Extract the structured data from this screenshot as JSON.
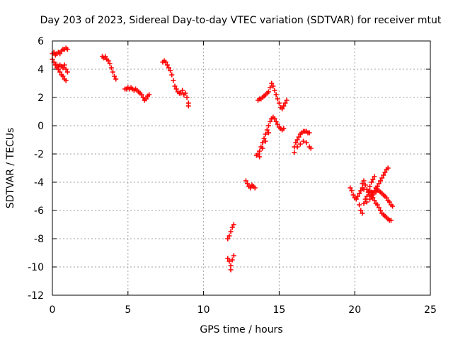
{
  "chart_data": {
    "type": "scatter",
    "title": "Day 203 of 2023, Sidereal Day-to-day VTEC variation (SDTVAR) for receiver mtut",
    "xlabel": "GPS time / hours",
    "ylabel": "SDTVAR / TECUs",
    "xlim": [
      0,
      25
    ],
    "ylim": [
      -12,
      6
    ],
    "xticks": [
      0,
      5,
      10,
      15,
      20,
      25
    ],
    "yticks": [
      -12,
      -10,
      -8,
      -6,
      -4,
      -2,
      0,
      2,
      4,
      6
    ],
    "xtick_labels": [
      "0",
      "5",
      "10",
      "15",
      "20",
      "25"
    ],
    "ytick_labels": [
      "-12",
      "-10",
      "-8",
      "-6",
      "-4",
      "-2",
      "0",
      "2",
      "4",
      "6"
    ],
    "grid": true,
    "marker": "+",
    "marker_color": "#ff0000",
    "series": [
      {
        "name": "SDTVAR",
        "points": [
          [
            0.0,
            5.1
          ],
          [
            0.1,
            5.2
          ],
          [
            0.2,
            5.0
          ],
          [
            0.3,
            5.1
          ],
          [
            0.4,
            5.2
          ],
          [
            0.5,
            5.1
          ],
          [
            0.6,
            5.3
          ],
          [
            0.7,
            5.4
          ],
          [
            0.8,
            5.4
          ],
          [
            0.9,
            5.5
          ],
          [
            1.0,
            5.4
          ],
          [
            0.0,
            4.7
          ],
          [
            0.1,
            4.5
          ],
          [
            0.2,
            4.3
          ],
          [
            0.3,
            4.1
          ],
          [
            0.4,
            4.0
          ],
          [
            0.5,
            3.8
          ],
          [
            0.6,
            3.6
          ],
          [
            0.7,
            3.5
          ],
          [
            0.8,
            3.3
          ],
          [
            0.9,
            3.2
          ],
          [
            0.3,
            4.3
          ],
          [
            0.4,
            4.2
          ],
          [
            0.5,
            4.3
          ],
          [
            0.6,
            4.2
          ],
          [
            0.7,
            4.1
          ],
          [
            0.8,
            4.3
          ],
          [
            0.9,
            4.0
          ],
          [
            1.0,
            3.8
          ],
          [
            3.3,
            4.9
          ],
          [
            3.4,
            4.8
          ],
          [
            3.5,
            4.9
          ],
          [
            3.6,
            4.7
          ],
          [
            3.7,
            4.6
          ],
          [
            3.8,
            4.4
          ],
          [
            3.9,
            4.1
          ],
          [
            4.0,
            3.8
          ],
          [
            4.1,
            3.5
          ],
          [
            4.2,
            3.3
          ],
          [
            4.8,
            2.6
          ],
          [
            4.9,
            2.6
          ],
          [
            5.0,
            2.7
          ],
          [
            5.1,
            2.6
          ],
          [
            5.2,
            2.7
          ],
          [
            5.3,
            2.6
          ],
          [
            5.4,
            2.5
          ],
          [
            5.5,
            2.6
          ],
          [
            5.6,
            2.5
          ],
          [
            5.7,
            2.4
          ],
          [
            5.8,
            2.3
          ],
          [
            5.9,
            2.2
          ],
          [
            6.0,
            2.0
          ],
          [
            6.1,
            1.8
          ],
          [
            6.2,
            1.9
          ],
          [
            6.3,
            2.1
          ],
          [
            6.4,
            2.2
          ],
          [
            7.3,
            4.5
          ],
          [
            7.4,
            4.6
          ],
          [
            7.5,
            4.5
          ],
          [
            7.6,
            4.3
          ],
          [
            7.7,
            4.1
          ],
          [
            7.8,
            3.9
          ],
          [
            7.9,
            3.6
          ],
          [
            8.0,
            3.2
          ],
          [
            8.1,
            2.8
          ],
          [
            8.2,
            2.6
          ],
          [
            8.3,
            2.4
          ],
          [
            8.4,
            2.3
          ],
          [
            8.5,
            2.3
          ],
          [
            8.6,
            2.5
          ],
          [
            8.7,
            2.2
          ],
          [
            8.8,
            2.3
          ],
          [
            8.9,
            2.0
          ],
          [
            9.0,
            1.6
          ],
          [
            9.0,
            1.4
          ],
          [
            11.6,
            -8.0
          ],
          [
            11.7,
            -7.8
          ],
          [
            11.8,
            -7.5
          ],
          [
            11.9,
            -7.2
          ],
          [
            12.0,
            -7.0
          ],
          [
            11.6,
            -9.4
          ],
          [
            11.7,
            -9.6
          ],
          [
            11.8,
            -9.9
          ],
          [
            11.8,
            -10.2
          ],
          [
            11.9,
            -9.5
          ],
          [
            12.0,
            -9.2
          ],
          [
            12.8,
            -3.9
          ],
          [
            12.9,
            -4.1
          ],
          [
            13.0,
            -4.3
          ],
          [
            13.1,
            -4.4
          ],
          [
            13.2,
            -4.2
          ],
          [
            13.3,
            -4.3
          ],
          [
            13.4,
            -4.4
          ],
          [
            13.5,
            -2.1
          ],
          [
            13.6,
            -2.0
          ],
          [
            13.7,
            -1.8
          ],
          [
            13.8,
            -1.5
          ],
          [
            13.9,
            -1.2
          ],
          [
            14.0,
            -0.9
          ],
          [
            14.1,
            -0.6
          ],
          [
            14.2,
            -0.3
          ],
          [
            14.3,
            0.0
          ],
          [
            14.4,
            0.3
          ],
          [
            14.5,
            0.5
          ],
          [
            14.6,
            0.6
          ],
          [
            14.7,
            0.5
          ],
          [
            14.8,
            0.3
          ],
          [
            14.9,
            0.1
          ],
          [
            15.0,
            -0.1
          ],
          [
            15.1,
            -0.2
          ],
          [
            15.2,
            -0.3
          ],
          [
            15.3,
            -0.2
          ],
          [
            13.6,
            1.8
          ],
          [
            13.7,
            1.9
          ],
          [
            13.8,
            1.9
          ],
          [
            13.9,
            2.0
          ],
          [
            14.0,
            2.1
          ],
          [
            14.1,
            2.2
          ],
          [
            14.2,
            2.3
          ],
          [
            14.3,
            2.4
          ],
          [
            14.4,
            2.7
          ],
          [
            14.5,
            3.0
          ],
          [
            14.6,
            2.8
          ],
          [
            14.7,
            2.5
          ],
          [
            14.8,
            2.2
          ],
          [
            14.9,
            1.9
          ],
          [
            15.0,
            1.6
          ],
          [
            15.1,
            1.3
          ],
          [
            15.2,
            1.2
          ],
          [
            15.3,
            1.4
          ],
          [
            15.4,
            1.6
          ],
          [
            15.5,
            1.8
          ],
          [
            13.7,
            -2.2
          ],
          [
            13.9,
            -1.6
          ],
          [
            14.1,
            -1.1
          ],
          [
            14.3,
            -0.5
          ],
          [
            16.0,
            -1.9
          ],
          [
            16.0,
            -1.5
          ],
          [
            16.1,
            -1.2
          ],
          [
            16.2,
            -1.0
          ],
          [
            16.3,
            -0.8
          ],
          [
            16.4,
            -0.6
          ],
          [
            16.5,
            -0.5
          ],
          [
            16.6,
            -0.4
          ],
          [
            16.7,
            -0.4
          ],
          [
            16.8,
            -0.4
          ],
          [
            16.9,
            -0.5
          ],
          [
            17.0,
            -0.5
          ],
          [
            16.2,
            -1.5
          ],
          [
            16.4,
            -1.3
          ],
          [
            16.6,
            -1.1
          ],
          [
            16.8,
            -1.2
          ],
          [
            17.0,
            -1.5
          ],
          [
            17.1,
            -1.6
          ],
          [
            19.7,
            -4.4
          ],
          [
            19.8,
            -4.6
          ],
          [
            19.9,
            -4.9
          ],
          [
            20.0,
            -5.1
          ],
          [
            20.1,
            -5.2
          ],
          [
            20.2,
            -5.0
          ],
          [
            20.3,
            -4.8
          ],
          [
            20.4,
            -4.6
          ],
          [
            20.5,
            -4.4
          ],
          [
            20.6,
            -4.5
          ],
          [
            20.3,
            -5.6
          ],
          [
            20.4,
            -6.0
          ],
          [
            20.5,
            -6.2
          ],
          [
            20.5,
            -4.1
          ],
          [
            20.6,
            -3.9
          ],
          [
            20.7,
            -4.2
          ],
          [
            20.8,
            -4.5
          ],
          [
            20.9,
            -4.7
          ],
          [
            21.0,
            -4.9
          ],
          [
            21.1,
            -5.0
          ],
          [
            21.2,
            -5.1
          ],
          [
            21.3,
            -5.3
          ],
          [
            21.4,
            -5.5
          ],
          [
            21.5,
            -5.6
          ],
          [
            21.6,
            -5.8
          ],
          [
            21.7,
            -6.0
          ],
          [
            21.8,
            -6.2
          ],
          [
            21.9,
            -6.3
          ],
          [
            22.0,
            -6.4
          ],
          [
            22.1,
            -6.5
          ],
          [
            22.2,
            -6.6
          ],
          [
            22.3,
            -6.7
          ],
          [
            22.4,
            -6.7
          ],
          [
            20.7,
            -5.2
          ],
          [
            20.8,
            -5.0
          ],
          [
            20.9,
            -4.7
          ],
          [
            21.0,
            -4.3
          ],
          [
            21.1,
            -4.0
          ],
          [
            21.2,
            -3.8
          ],
          [
            21.3,
            -3.6
          ],
          [
            21.0,
            -4.6
          ],
          [
            21.1,
            -4.7
          ],
          [
            21.2,
            -4.8
          ],
          [
            21.3,
            -4.6
          ],
          [
            21.4,
            -4.4
          ],
          [
            21.5,
            -4.3
          ],
          [
            21.6,
            -4.1
          ],
          [
            21.7,
            -3.9
          ],
          [
            21.8,
            -3.7
          ],
          [
            21.9,
            -3.5
          ],
          [
            22.0,
            -3.3
          ],
          [
            22.1,
            -3.1
          ],
          [
            22.2,
            -3.0
          ],
          [
            21.5,
            -4.5
          ],
          [
            21.6,
            -4.6
          ],
          [
            21.7,
            -4.7
          ],
          [
            21.8,
            -4.8
          ],
          [
            21.9,
            -4.9
          ],
          [
            22.0,
            -5.0
          ],
          [
            22.1,
            -5.1
          ],
          [
            22.2,
            -5.3
          ],
          [
            22.3,
            -5.4
          ],
          [
            22.4,
            -5.6
          ],
          [
            22.5,
            -5.7
          ],
          [
            20.6,
            -5.5
          ],
          [
            20.8,
            -5.4
          ],
          [
            21.0,
            -5.2
          ],
          [
            21.2,
            -4.9
          ],
          [
            21.4,
            -4.7
          ]
        ]
      }
    ]
  }
}
